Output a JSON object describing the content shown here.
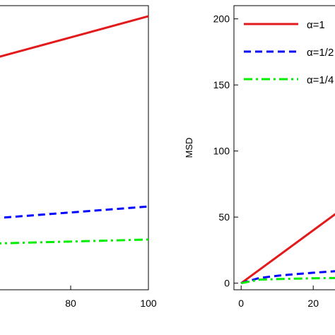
{
  "chart_data": [
    {
      "type": "line",
      "title": "",
      "xlabel": "",
      "ylabel": "",
      "xlim": [
        60,
        100
      ],
      "ylim": [
        -5,
        210
      ],
      "xticks": [
        {
          "value": 80,
          "label": "80"
        },
        {
          "value": 100,
          "label": "100"
        }
      ],
      "yticks": [],
      "series": [
        {
          "color": "#e31a1c",
          "dash": "solid",
          "x": [
            60,
            100
          ],
          "y": [
            170,
            202
          ]
        },
        {
          "color": "#0000ff",
          "dash": "dashed",
          "x": [
            60,
            100
          ],
          "y": [
            49,
            58
          ]
        },
        {
          "color": "#00ee00",
          "dash": "dashdot",
          "x": [
            60,
            100
          ],
          "y": [
            30,
            33
          ]
        }
      ]
    },
    {
      "type": "line",
      "title": "",
      "xlabel": "",
      "ylabel": "MSD",
      "xlim": [
        -2,
        28
      ],
      "ylim": [
        -5,
        210
      ],
      "legend": "top-left",
      "xticks": [
        {
          "value": 0,
          "label": "0"
        },
        {
          "value": 20,
          "label": "20"
        }
      ],
      "yticks": [
        {
          "value": 0,
          "label": "0"
        },
        {
          "value": 50,
          "label": "50"
        },
        {
          "value": 100,
          "label": "100"
        },
        {
          "value": 150,
          "label": "150"
        },
        {
          "value": 200,
          "label": "200"
        }
      ],
      "series": [
        {
          "name": "α=1",
          "color": "#e31a1c",
          "dash": "solid",
          "x": [
            0,
            28
          ],
          "y": [
            0,
            56
          ]
        },
        {
          "name": "α=1/2",
          "color": "#0000ff",
          "dash": "dashed",
          "x": [
            0,
            5,
            10,
            15,
            20,
            28
          ],
          "y": [
            0,
            3.9,
            5.6,
            6.8,
            7.9,
            9.4
          ]
        },
        {
          "name": "α=1/4",
          "color": "#00ee00",
          "dash": "dashdot",
          "x": [
            0,
            5,
            10,
            15,
            20,
            28
          ],
          "y": [
            0,
            2.6,
            3.1,
            3.4,
            3.7,
            4.0
          ]
        }
      ]
    }
  ]
}
